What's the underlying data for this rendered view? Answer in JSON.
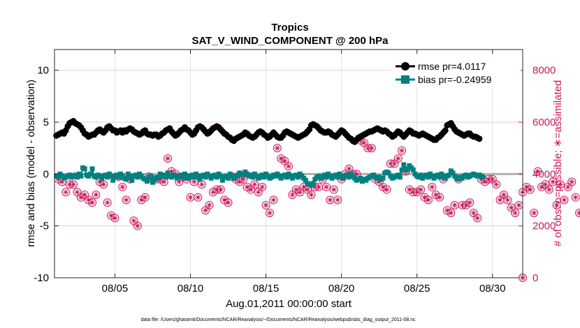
{
  "chart_data": {
    "type": "line",
    "title": "Tropics",
    "subtitle": "SAT_V_WIND_COMPONENT @ 200 hPa",
    "xlabel": "Aug.01,2011 00:00:00 start",
    "ylabel": "rmse and bias (model - observation)",
    "ylabel_right": "# of obs: o=possible; ∗=assimilated",
    "footer": "data file: /Users/gharamti/Documents/NCAR/Reanalysis/~/Documents/NCAR/Reanalysis/webpub/obs_diag_output_2011-08.nc",
    "xlim": [
      1,
      32
    ],
    "ylim": [
      -10,
      12
    ],
    "ylim_right": [
      0,
      8800
    ],
    "x_ticks": [
      5,
      10,
      15,
      20,
      25,
      30
    ],
    "x_tick_labels": [
      "08/05",
      "08/10",
      "08/15",
      "08/20",
      "08/25",
      "08/30"
    ],
    "y_ticks": [
      -10,
      -5,
      0,
      5,
      10
    ],
    "y_tick_labels": [
      "-10",
      "-5",
      "0",
      "5",
      "10"
    ],
    "y_ticks_right": [
      0,
      2000,
      4000,
      6000,
      8000
    ],
    "y_tick_labels_right": [
      "0",
      "2000",
      "4000",
      "6000",
      "8000"
    ],
    "x_grid": [
      5,
      10,
      15,
      20,
      25,
      30
    ],
    "y_grid": [
      -5,
      0,
      5,
      10
    ],
    "legend_position": "top-right",
    "colors": {
      "rmse": "#000000",
      "bias": "#008080",
      "obs": "#c8185a",
      "zero_line": "#b0b0b0",
      "grid": "#e2e2e2"
    },
    "series": [
      {
        "name": "rmse pr=4.0117",
        "marker": "circle",
        "x_start": 1.125,
        "x_step": 0.125,
        "values": [
          3.7,
          3.8,
          3.9,
          4.0,
          3.9,
          4.2,
          4.6,
          4.9,
          5.0,
          5.1,
          4.9,
          4.8,
          4.7,
          4.5,
          4.2,
          3.9,
          3.8,
          3.6,
          3.7,
          3.8,
          3.8,
          4.0,
          4.2,
          4.3,
          4.1,
          4.0,
          4.2,
          4.5,
          4.6,
          4.4,
          4.2,
          4.2,
          4.0,
          4.1,
          4.2,
          4.0,
          4.2,
          4.1,
          4.3,
          4.4,
          4.3,
          4.1,
          4.0,
          3.9,
          3.8,
          3.9,
          4.1,
          4.2,
          3.9,
          3.8,
          3.8,
          3.7,
          3.8,
          3.8,
          3.6,
          3.7,
          3.9,
          4.0,
          4.2,
          4.3,
          4.4,
          4.1,
          3.9,
          3.7,
          3.8,
          4.0,
          4.2,
          4.3,
          4.5,
          4.3,
          4.2,
          4.0,
          3.8,
          3.9,
          4.2,
          4.5,
          4.6,
          4.5,
          4.3,
          4.1,
          3.9,
          4.0,
          4.2,
          4.4,
          4.5,
          4.6,
          4.5,
          4.3,
          4.1,
          3.9,
          3.8,
          3.6,
          3.5,
          3.3,
          3.2,
          3.4,
          3.5,
          3.6,
          3.7,
          3.8,
          4.0,
          3.9,
          3.7,
          3.6,
          3.5,
          3.6,
          3.8,
          4.0,
          4.1,
          4.0,
          3.8,
          3.7,
          3.5,
          3.6,
          3.8,
          4.0,
          3.8,
          3.6,
          3.5,
          3.5,
          3.7,
          4.0,
          4.1,
          4.0,
          3.9,
          3.8,
          3.7,
          3.6,
          3.5,
          3.6,
          3.7,
          3.8,
          3.9,
          4.1,
          4.3,
          4.7,
          4.8,
          4.7,
          4.6,
          4.4,
          4.2,
          4.1,
          4.0,
          4.0,
          4.1,
          4.0,
          3.8,
          3.7,
          3.6,
          3.8,
          4.0,
          4.2,
          4.1,
          3.9,
          3.7,
          3.5,
          3.4,
          3.2,
          3.1,
          3.3,
          3.5,
          3.6,
          3.7,
          3.8,
          3.9,
          4.0,
          4.1,
          4.1,
          4.2,
          4.3,
          4.4,
          4.3,
          4.2,
          4.1,
          4.2,
          4.1,
          3.9,
          3.8,
          3.6,
          3.7,
          3.9,
          4.1,
          4.0,
          3.8,
          3.6,
          3.8,
          4.0,
          4.2,
          4.1,
          3.9,
          3.9,
          3.8,
          3.7,
          3.8,
          3.9,
          3.8,
          3.7,
          3.6,
          3.5,
          3.4,
          3.3,
          3.3,
          3.5,
          3.6,
          3.8,
          4.0,
          4.2,
          4.7,
          4.8,
          4.9,
          4.6,
          4.3,
          4.1,
          4.0,
          3.9,
          3.8,
          3.7,
          3.8,
          3.9,
          3.9,
          3.7,
          3.6,
          3.6,
          3.5,
          3.4
        ]
      },
      {
        "name": "bias pr=-0.24959",
        "marker": "square",
        "x_start": 1.125,
        "x_step": 0.125,
        "values": [
          -0.2,
          -0.3,
          0.0,
          -0.2,
          -0.4,
          -0.3,
          -0.2,
          -0.1,
          -0.3,
          -0.2,
          -0.1,
          -0.3,
          0.0,
          -0.2,
          0.6,
          0.5,
          -0.1,
          -0.2,
          0.0,
          0.5,
          -0.2,
          -0.3,
          -0.1,
          -0.2,
          -0.4,
          -0.2,
          -0.1,
          -0.3,
          0.0,
          -0.2,
          -0.6,
          -0.2,
          -0.1,
          -0.3,
          0.0,
          -0.2,
          -0.4,
          -0.5,
          0.0,
          -0.2,
          -0.6,
          -0.2,
          -0.1,
          -0.3,
          0.0,
          -0.2,
          -0.4,
          -0.5,
          -0.7,
          -0.3,
          -0.2,
          -0.8,
          -0.5,
          -0.4,
          -0.3,
          0.0,
          -0.2,
          -0.1,
          -0.3,
          0.1,
          -0.2,
          -0.3,
          -0.1,
          -0.2,
          -0.4,
          -0.2,
          -0.1,
          -0.3,
          0.0,
          -0.2,
          -0.4,
          -0.2,
          -0.1,
          -0.3,
          0.0,
          -0.2,
          -0.5,
          -0.2,
          -0.1,
          -0.3,
          0.0,
          -0.2,
          -0.4,
          -0.2,
          -0.1,
          -0.3,
          0.0,
          -0.2,
          -0.6,
          -0.3,
          -0.2,
          -0.4,
          0.0,
          -0.2,
          -0.4,
          -0.3,
          -0.1,
          0.1,
          0.0,
          -0.1,
          0.2,
          0.0,
          -0.2,
          -0.1,
          -0.3,
          0.0,
          -0.2,
          -0.4,
          -0.3,
          -0.1,
          -0.3,
          0.0,
          -0.2,
          -0.4,
          -0.3,
          -0.1,
          -0.2,
          0.0,
          -0.2,
          -0.4,
          -0.2,
          -0.1,
          -0.3,
          0.0,
          -0.2,
          -0.4,
          -0.2,
          -0.1,
          -0.3,
          0.0,
          -0.2,
          -0.4,
          -0.6,
          -0.9,
          -1.0,
          -1.1,
          -0.9,
          -0.5,
          -0.3,
          -0.2,
          -0.4,
          -0.3,
          -0.1,
          -0.3,
          0.0,
          -0.2,
          -0.4,
          -0.2,
          -0.1,
          -0.3,
          0.0,
          -0.2,
          -0.4,
          -0.2,
          -0.1,
          -0.3,
          0.0,
          -0.2,
          -0.4,
          -0.6,
          -0.5,
          -0.4,
          -0.7,
          -0.5,
          -0.6,
          -0.4,
          -0.3,
          -0.2,
          -0.1,
          -0.3,
          -0.4,
          -0.3,
          -0.5,
          -0.4,
          0.1,
          0.2,
          0.1,
          -0.2,
          -0.4,
          -0.3,
          -0.2,
          -0.1,
          -0.3,
          0.4,
          0.9,
          0.5,
          0.4,
          0.8,
          0.6,
          0.4,
          0.0,
          -0.2,
          -0.3,
          -0.1,
          -0.4,
          -0.2,
          -0.1,
          -0.3,
          0.0,
          -0.2,
          -0.4,
          -0.2,
          -0.1,
          -0.3,
          0.0,
          -0.2,
          -0.4,
          -0.2,
          -0.1,
          0.3,
          0.1,
          -0.2,
          -0.4,
          -0.5,
          -0.3,
          -0.4,
          -0.2,
          -0.1,
          -0.3,
          -0.2,
          -0.1,
          0.0,
          -0.1,
          -0.2,
          -0.1,
          -0.2,
          -0.3
        ]
      },
      {
        "name": "# of obs (possible / assimilated)",
        "marker": "circle-asterisk",
        "axis": "right",
        "x_start": 1.25,
        "x_step": 0.25,
        "values": [
          3800,
          3700,
          3300,
          3600,
          3600,
          3300,
          3100,
          3200,
          3000,
          2900,
          3200,
          3700,
          3600,
          2900,
          2400,
          2300,
          3900,
          3500,
          3000,
          3800,
          2200,
          2000,
          3000,
          3100,
          3900,
          3800,
          3800,
          3800,
          3700,
          4600,
          4100,
          4000,
          3700,
          3900,
          3800,
          3100,
          3700,
          3100,
          3600,
          2600,
          2800,
          3300,
          3400,
          3400,
          3000,
          2900,
          3900,
          3800,
          3700,
          3800,
          3500,
          3400,
          3600,
          3300,
          3500,
          2800,
          2500,
          3000,
          5000,
          4600,
          4500,
          4300,
          3200,
          3400,
          3300,
          3500,
          3400,
          3200,
          3500,
          3500,
          3800,
          3500,
          3000,
          3400,
          3000,
          3800,
          4000,
          4200,
          4000,
          4000,
          5300,
          5200,
          5000,
          5000,
          3800,
          3700,
          3500,
          3400,
          4400,
          4400,
          4600,
          4900,
          4100,
          3400,
          3300,
          3300,
          3400,
          3100,
          3000,
          3500,
          3200,
          3100,
          3800,
          2600,
          2500,
          2800,
          3800,
          2800,
          2800,
          2900,
          2500,
          2300,
          3800,
          3700,
          3800,
          3800,
          3600,
          3000,
          3200,
          3000,
          2700,
          2500,
          2800,
          3300,
          3500,
          3400,
          2500,
          4100,
          3500,
          3600,
          3400,
          3700,
          2800,
          3600,
          3000,
          3500,
          3700,
          3100,
          2500,
          2500,
          2500,
          2200,
          2900,
          2900,
          2600,
          3800,
          3400,
          3000
        ]
      }
    ]
  }
}
